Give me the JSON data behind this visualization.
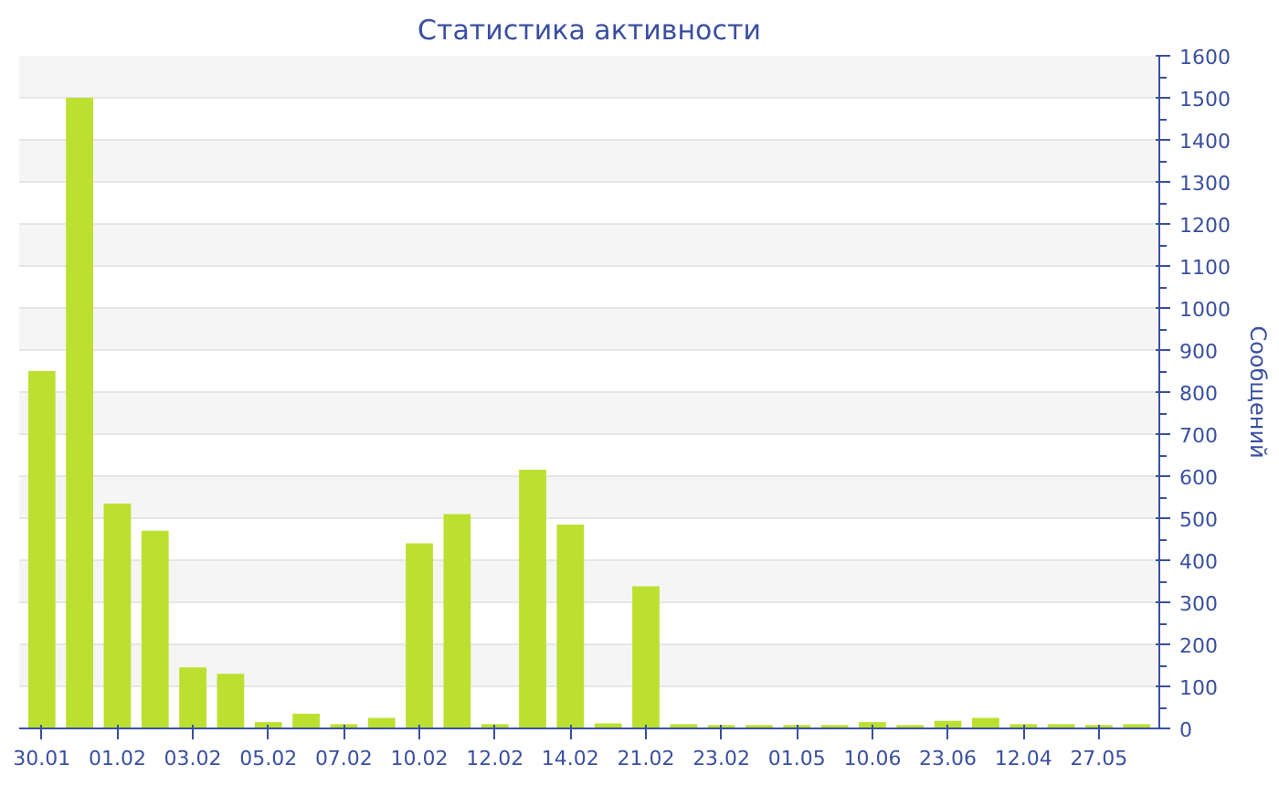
{
  "chart_data": {
    "type": "bar",
    "title": "Статистика активности",
    "ylabel": "Сообщений",
    "categories": [
      "30.01",
      null,
      "01.02",
      null,
      "03.02",
      null,
      "05.02",
      null,
      "07.02",
      null,
      "10.02",
      null,
      "12.02",
      null,
      "14.02",
      null,
      "21.02",
      null,
      "23.02",
      null,
      "01.05",
      null,
      "10.06",
      null,
      "23.06",
      null,
      "12.04",
      null,
      "27.05",
      null
    ],
    "values": [
      850,
      1500,
      535,
      470,
      145,
      130,
      15,
      35,
      10,
      25,
      440,
      510,
      10,
      615,
      485,
      12,
      338,
      10,
      8,
      8,
      8,
      8,
      15,
      8,
      18,
      25,
      10,
      10,
      8,
      10
    ],
    "color": "#bbe02f",
    "ylim": [
      0,
      1600
    ],
    "yticks": [
      0,
      100,
      200,
      300,
      400,
      500,
      600,
      700,
      800,
      900,
      1000,
      1100,
      1200,
      1300,
      1400,
      1500,
      1600
    ],
    "grid": "y"
  }
}
